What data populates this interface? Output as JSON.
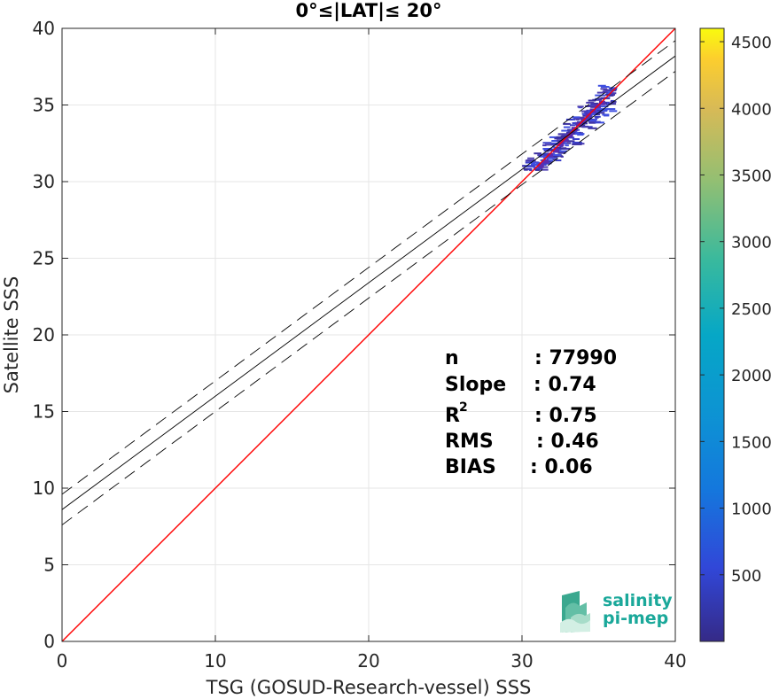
{
  "chart_data": {
    "type": "heatmap",
    "title": "0°≤|LAT|≤ 20°",
    "xlabel": "TSG (GOSUD-Research-vessel) SSS",
    "ylabel": "Satellite SSS",
    "xlim": [
      0,
      40
    ],
    "ylim": [
      0,
      40
    ],
    "x_ticks": [
      "0",
      "10",
      "20",
      "30",
      "40"
    ],
    "y_ticks": [
      "0",
      "5",
      "10",
      "15",
      "20",
      "25",
      "30",
      "35",
      "40"
    ],
    "grid": true,
    "colorbar": {
      "range": [
        0,
        4600
      ],
      "ticks": [
        "500",
        "1000",
        "1500",
        "2000",
        "2500",
        "3000",
        "3500",
        "4000",
        "4500"
      ],
      "colormap": "parula"
    },
    "identity_line": {
      "slope": 1,
      "intercept": 0,
      "color": "#ff0000"
    },
    "fit_line": {
      "slope": 0.74,
      "intercept": 8.6,
      "color": "#000000"
    },
    "fit_bounds": [
      {
        "slope": 0.74,
        "intercept": 9.6,
        "style": "dashed"
      },
      {
        "slope": 0.74,
        "intercept": 7.6,
        "style": "dashed"
      }
    ],
    "density_cells": [
      {
        "x": 31.2,
        "y": 31.0,
        "count": 900
      },
      {
        "x": 31.5,
        "y": 31.3,
        "count": 1000
      },
      {
        "x": 31.8,
        "y": 31.7,
        "count": 850
      },
      {
        "x": 32.2,
        "y": 32.0,
        "count": 800
      },
      {
        "x": 32.5,
        "y": 32.4,
        "count": 750
      },
      {
        "x": 32.8,
        "y": 32.7,
        "count": 700
      },
      {
        "x": 33.1,
        "y": 33.0,
        "count": 650
      },
      {
        "x": 33.4,
        "y": 33.4,
        "count": 600
      },
      {
        "x": 33.7,
        "y": 33.7,
        "count": 550
      },
      {
        "x": 34.0,
        "y": 34.0,
        "count": 500
      },
      {
        "x": 34.3,
        "y": 34.3,
        "count": 450
      },
      {
        "x": 34.6,
        "y": 34.6,
        "count": 400
      },
      {
        "x": 34.9,
        "y": 34.9,
        "count": 350
      },
      {
        "x": 35.2,
        "y": 35.1,
        "count": 300
      }
    ],
    "stats": {
      "n_label": "n",
      "n_value": ": 77990",
      "slope_label": "Slope",
      "slope_value": ": 0.74",
      "r2_label": "R",
      "r2_sup": "2",
      "r2_value": ": 0.75",
      "rms_label": "RMS",
      "rms_value": ": 0.46",
      "bias_label": "BIAS",
      "bias_value": ": 0.06"
    }
  },
  "logo": {
    "line1": "salinity",
    "line2": "pi-mep"
  }
}
